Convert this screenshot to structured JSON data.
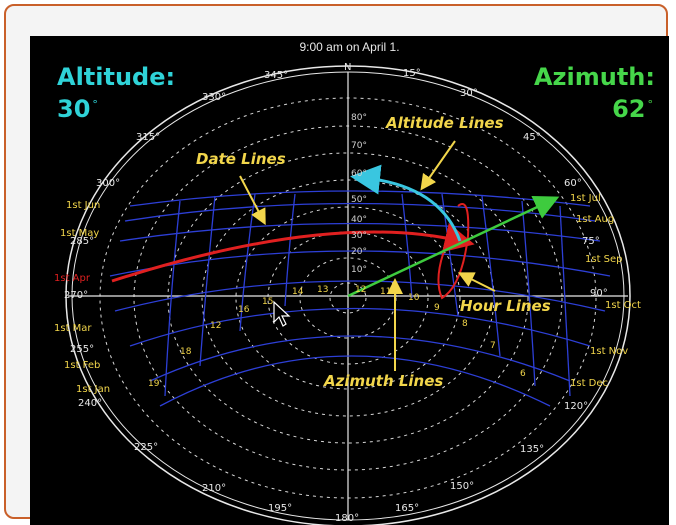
{
  "caption": "9:00 am on April 1.",
  "altitude": {
    "title": "Altitude:",
    "value": "30",
    "unit": "°",
    "color": "#2fd3d8"
  },
  "azimuth": {
    "title": "Azimuth:",
    "value": "62",
    "unit": "°",
    "color": "#46d64a"
  },
  "annotations": {
    "altitude_lines": "Altitude Lines",
    "date_lines": "Date Lines",
    "hour_lines": "Hour Lines",
    "azimuth_lines": "Azimuth Lines"
  },
  "compass_labels": [
    "N",
    "15°",
    "30°",
    "45°",
    "60°",
    "75°",
    "90°",
    "120°",
    "135°",
    "150°",
    "165°",
    "180°",
    "195°",
    "210°",
    "225°",
    "240°",
    "255°",
    "270°",
    "285°",
    "300°",
    "315°",
    "330°",
    "345°"
  ],
  "date_labels_left": [
    "1st Jun",
    "1st May",
    "1st Apr",
    "1st Mar",
    "1st Feb",
    "1st Jan"
  ],
  "date_labels_right": [
    "1st Jul",
    "1st Aug",
    "1st Sep",
    "1st Oct",
    "1st Nov",
    "1st Dec"
  ],
  "altitude_rings": [
    "80°",
    "70°",
    "60°",
    "50°",
    "40°",
    "30°",
    "20°",
    "10°"
  ],
  "hour_labels": [
    "19",
    "18",
    "12",
    "16",
    "15",
    "14",
    "13",
    "12",
    "11",
    "10",
    "9",
    "8",
    "7",
    "6"
  ],
  "colors": {
    "background": "#000000",
    "red_path": "#e02020",
    "cyan_arrow": "#39c6e0",
    "green_arrow": "#3ecb3e",
    "yellow_text": "#f2d64b",
    "blue_grid": "#2d3fd6"
  }
}
